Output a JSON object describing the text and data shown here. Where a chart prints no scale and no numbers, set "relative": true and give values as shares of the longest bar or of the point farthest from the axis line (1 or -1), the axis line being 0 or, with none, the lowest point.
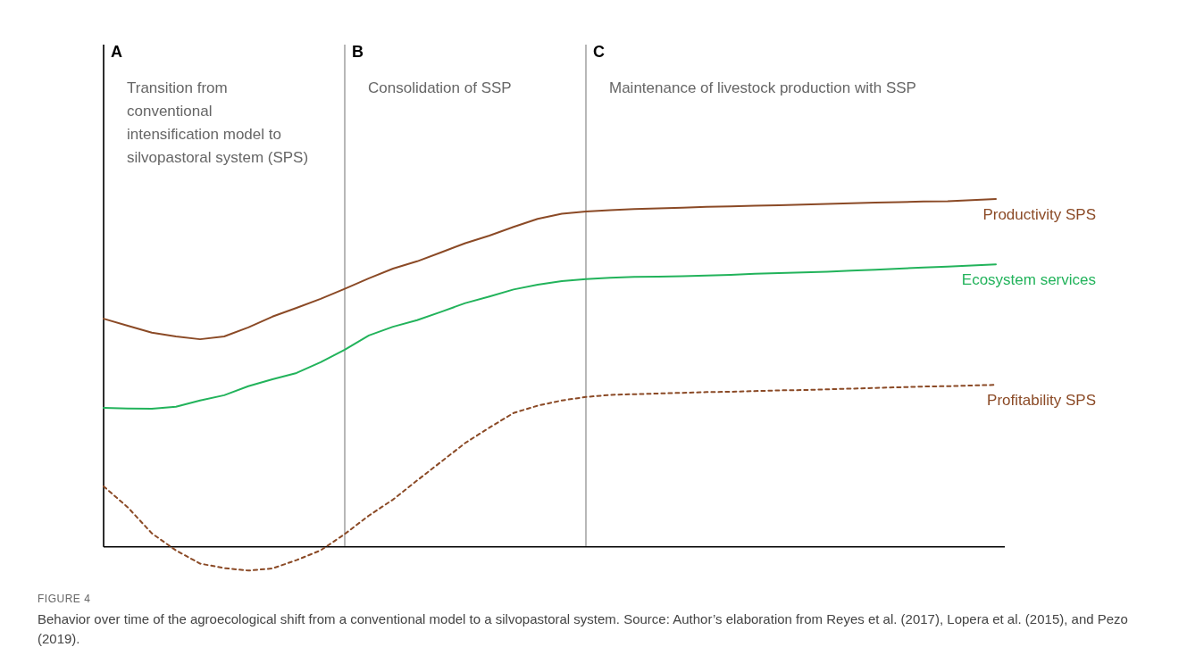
{
  "chart_data": {
    "type": "line",
    "title": "FIGURE 4",
    "relative": true,
    "grid": false,
    "marker": "none",
    "categories": [
      null,
      null,
      null,
      null,
      null,
      null,
      null,
      null,
      null,
      null,
      null,
      null,
      null,
      null,
      null,
      null,
      null,
      null,
      null,
      null,
      null,
      null,
      null,
      null,
      null,
      null,
      null,
      null,
      null,
      null,
      null,
      null,
      null,
      null,
      null,
      null,
      null,
      null
    ],
    "series": [
      {
        "name": "Productivity SPS",
        "color": "#8b4a26",
        "line_style": "solid",
        "values": [
          0.656,
          0.636,
          0.616,
          0.605,
          0.597,
          0.605,
          0.631,
          0.662,
          0.687,
          0.713,
          0.742,
          0.772,
          0.8,
          0.821,
          0.847,
          0.873,
          0.895,
          0.92,
          0.943,
          0.958,
          0.964,
          0.968,
          0.971,
          0.973,
          0.975,
          0.978,
          0.979,
          0.981,
          0.982,
          0.984,
          0.986,
          0.988,
          0.99,
          0.991,
          0.993,
          0.994,
          0.997,
          1.0
        ]
      },
      {
        "name": "Ecosystem services",
        "color": "#22b35b",
        "line_style": "solid",
        "values": [
          0.4,
          0.398,
          0.397,
          0.403,
          0.421,
          0.436,
          0.462,
          0.482,
          0.5,
          0.531,
          0.567,
          0.608,
          0.633,
          0.652,
          0.676,
          0.701,
          0.72,
          0.74,
          0.754,
          0.764,
          0.77,
          0.774,
          0.776,
          0.777,
          0.778,
          0.78,
          0.782,
          0.785,
          0.787,
          0.789,
          0.791,
          0.794,
          0.797,
          0.8,
          0.803,
          0.806,
          0.809,
          0.812
        ]
      },
      {
        "name": "Profitability SPS",
        "color": "#8b4a26",
        "line_style": "dashed",
        "values": [
          0.174,
          0.114,
          0.039,
          -0.01,
          -0.048,
          -0.061,
          -0.068,
          -0.062,
          -0.038,
          -0.01,
          0.037,
          0.09,
          0.136,
          0.191,
          0.245,
          0.299,
          0.343,
          0.385,
          0.406,
          0.421,
          0.431,
          0.437,
          0.439,
          0.441,
          0.443,
          0.445,
          0.446,
          0.448,
          0.45,
          0.451,
          0.453,
          0.455,
          0.457,
          0.459,
          0.461,
          0.462,
          0.464,
          0.466
        ]
      }
    ],
    "annotations": [
      "A",
      "B",
      "C",
      "Transition from conventional intensification model to silvopastoral system (SPS)",
      "Consolidation of SSP",
      "Maintenance of livestock production with SSP",
      "Behavior over time of the agroecological shift from a conventional model to a silvopastoral system. Source: Author’s elaboration from Reyes et al. (2017), Lopera et al. (2015), and Pezo (2019)."
    ]
  }
}
